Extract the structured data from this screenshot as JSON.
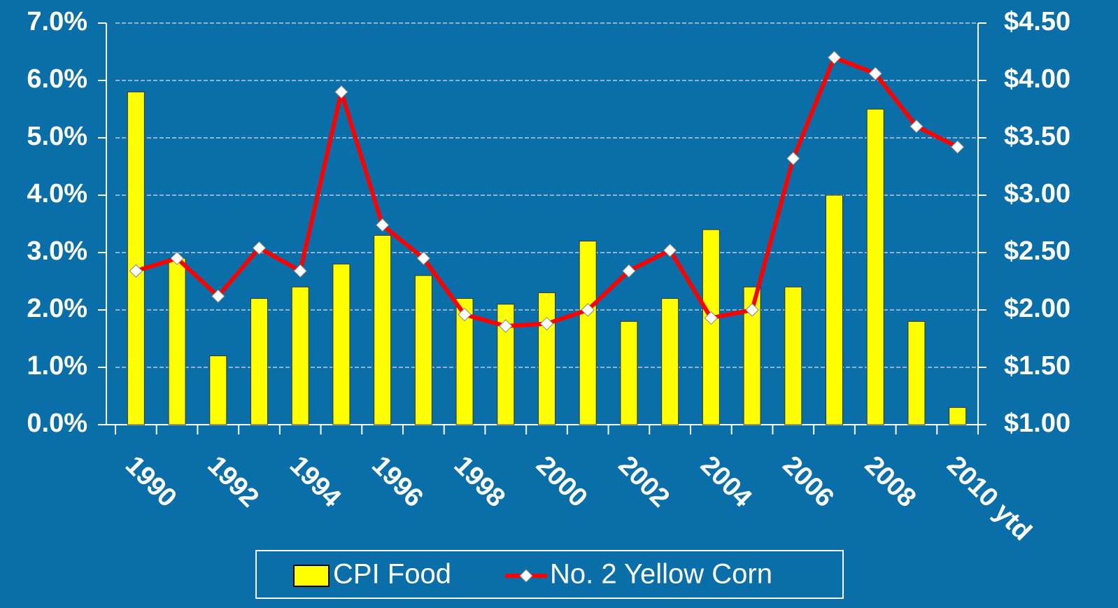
{
  "chart_data": {
    "type": "bar_line",
    "categories": [
      "1990",
      null,
      "1992",
      null,
      "1994",
      null,
      "1996",
      null,
      "1998",
      null,
      "2000",
      null,
      "2002",
      null,
      "2004",
      null,
      "2006",
      null,
      "2008",
      null,
      "2010 ytd"
    ],
    "series": [
      {
        "name": "CPI Food",
        "type": "bar",
        "color": "#ffff00",
        "values": [
          5.8,
          2.9,
          1.2,
          2.2,
          2.4,
          2.8,
          3.3,
          2.6,
          2.2,
          2.1,
          2.3,
          3.2,
          1.8,
          2.2,
          3.4,
          2.4,
          2.4,
          4.0,
          5.5,
          1.8,
          0.3
        ]
      },
      {
        "name": "No. 2 Yellow Corn",
        "type": "line",
        "axis": "y2",
        "color": "#ff0000",
        "values": [
          2.34,
          2.45,
          2.12,
          2.54,
          2.34,
          3.9,
          2.74,
          2.45,
          1.96,
          1.86,
          1.88,
          2.0,
          2.34,
          2.52,
          1.93,
          2.0,
          3.32,
          4.2,
          4.06,
          3.6,
          3.42
        ]
      }
    ],
    "ylim": [
      0,
      7
    ],
    "yticks": [
      {
        "value": 0,
        "label": "0.0%"
      },
      {
        "value": 1,
        "label": "1.0%"
      },
      {
        "value": 2,
        "label": "2.0%"
      },
      {
        "value": 3,
        "label": "3.0%"
      },
      {
        "value": 4,
        "label": "4.0%"
      },
      {
        "value": 5,
        "label": "5.0%"
      },
      {
        "value": 6,
        "label": "6.0%"
      },
      {
        "value": 7,
        "label": "7.0%"
      }
    ],
    "y2lim": [
      1,
      4.5
    ],
    "y2ticks": [
      {
        "value": 1,
        "label": "$1.00"
      },
      {
        "value": 1.5,
        "label": "$1.50"
      },
      {
        "value": 2,
        "label": "$2.00"
      },
      {
        "value": 2.5,
        "label": "$2.50"
      },
      {
        "value": 3,
        "label": "$3.00"
      },
      {
        "value": 3.5,
        "label": "$3.50"
      },
      {
        "value": 4,
        "label": "$4.00"
      },
      {
        "value": 4.5,
        "label": "$4.50"
      }
    ],
    "grid": true
  }
}
